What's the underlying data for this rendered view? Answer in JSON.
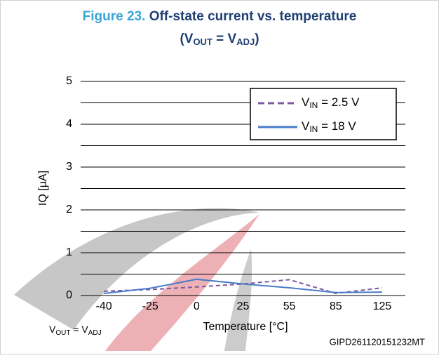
{
  "chart_data": {
    "type": "line",
    "figure_label": "Figure 23.",
    "title": "Off-state current vs. temperature",
    "subtitle": [
      "(V",
      "OUT",
      " = V",
      "ADJ",
      ")"
    ],
    "ylabel": "IQ  [µA]",
    "xlabel": "Temperature  [°C]",
    "annotation": [
      "V",
      "OUT",
      " = V",
      "ADJ"
    ],
    "code": "GIPD261120151232MT",
    "categories": [
      "-40",
      "-25",
      "0",
      "25",
      "55",
      "85",
      "125"
    ],
    "series": [
      {
        "name": [
          "V",
          "IN",
          "  = 2.5 V"
        ],
        "color": "#7b5a9e",
        "dash": true,
        "values": [
          0.1,
          0.14,
          0.2,
          0.27,
          0.37,
          0.05,
          0.18
        ]
      },
      {
        "name": [
          "V",
          "IN",
          "  = 18 V"
        ],
        "color": "#4a7bc8",
        "dash": false,
        "values": [
          0.05,
          0.17,
          0.38,
          0.27,
          0.18,
          0.07,
          0.08
        ]
      }
    ],
    "ylim": [
      0,
      5
    ],
    "yticks": [
      0,
      1,
      2,
      3,
      4,
      5
    ],
    "ygrid": [
      0,
      0.5,
      1,
      1.5,
      2,
      2.5,
      3,
      3.5,
      4,
      4.5,
      5
    ],
    "grid": true
  }
}
